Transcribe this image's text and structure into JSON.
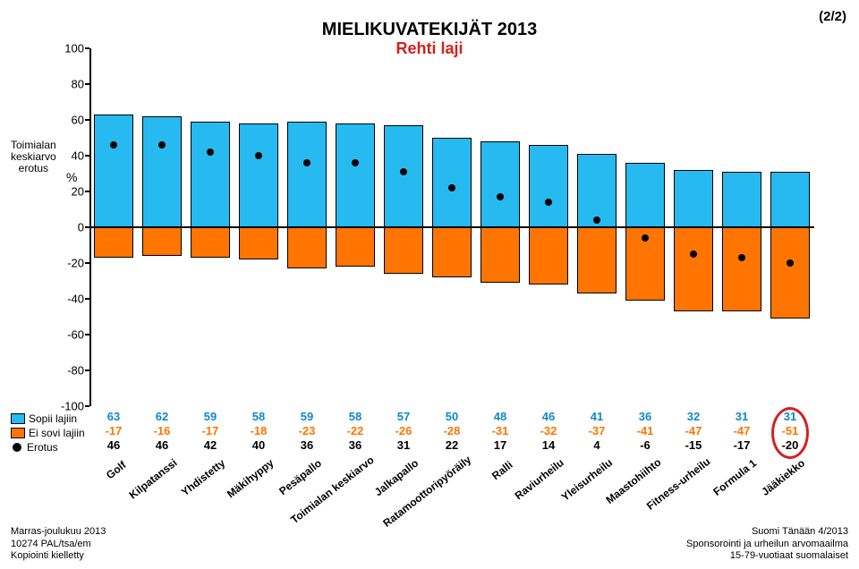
{
  "page_number": "(2/2)",
  "title": "MIELIKUVATEKIJÄT 2013",
  "subtitle": "Rehti laji",
  "yaxis_outer_label": "Toimialan\nkeskiarvo\nerotus",
  "yaxis_unit": "%",
  "chart": {
    "type": "bar",
    "ylim_min": -100,
    "ylim_max": 100,
    "ytick_step": 20,
    "bar_pos_color": "#26baf1",
    "bar_neg_color": "#ff7500",
    "dot_color": "#000000",
    "axis_color": "#000000",
    "bg_color": "#ffffff",
    "bar_width_ratio": 0.82
  },
  "legend": {
    "pos": "Sopii lajiin",
    "neg": "Ei sovi lajiin",
    "dot": "Erotus"
  },
  "row_colors": {
    "pos": "#1087c9",
    "neg": "#ff7500",
    "dot": "#000000"
  },
  "categories": [
    "Golf",
    "Kilpatanssi",
    "Yhdistetty",
    "Mäkihyppy",
    "Pesäpallo",
    "Toimialan keskiarvo",
    "Jalkapallo",
    "Ratamoottoripyöräily",
    "Ralli",
    "Raviurheilu",
    "Yleisurheilu",
    "Maastohiihto",
    "Fitness-urheilu",
    "Formula 1",
    "Jääkiekko"
  ],
  "series": {
    "pos": [
      63,
      62,
      59,
      58,
      59,
      58,
      57,
      50,
      48,
      46,
      41,
      36,
      32,
      31,
      31
    ],
    "neg": [
      -17,
      -16,
      -17,
      -18,
      -23,
      -22,
      -26,
      -28,
      -31,
      -32,
      -37,
      -41,
      -47,
      -47,
      -51
    ],
    "dot": [
      46,
      46,
      42,
      40,
      36,
      36,
      31,
      22,
      17,
      14,
      4,
      -6,
      -15,
      -17,
      -20
    ]
  },
  "highlight_index": 14,
  "footer_left": [
    "Marras-joulukuu 2013",
    "10274 PAL/tsa/em",
    "Kopiointi kielletty"
  ],
  "footer_right": [
    "Suomi Tänään 4/2013",
    "Sponsorointi ja urheilun arvomaailma",
    "15-79-vuotiaat suomalaiset"
  ]
}
